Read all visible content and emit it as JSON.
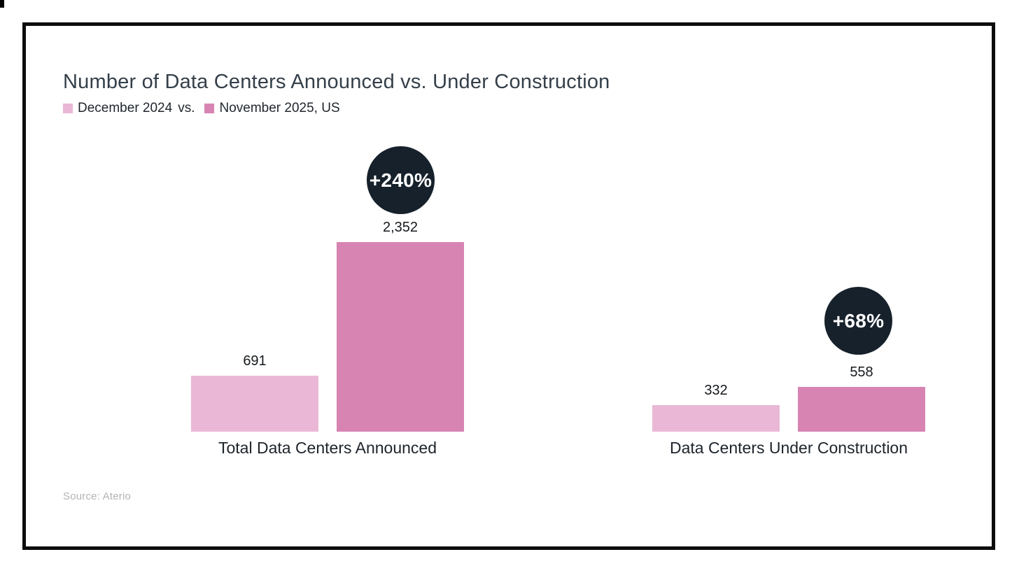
{
  "title": "Number of Data Centers Announced vs. Under Construction",
  "legend": {
    "series1_label": "December 2024",
    "separator": "vs.",
    "series2_label": "November 2025, US"
  },
  "colors": {
    "series1": "#eab8d6",
    "series2": "#d784b3",
    "badge_bg": "#16212b",
    "badge_text": "#ffffff"
  },
  "groups": [
    {
      "label": "Total Data Centers Announced",
      "bars": [
        {
          "series": "December 2024",
          "value_label": "691"
        },
        {
          "series": "November 2025",
          "value_label": "2,352"
        }
      ],
      "badge": "+240%"
    },
    {
      "label": "Data Centers Under Construction",
      "bars": [
        {
          "series": "December 2024",
          "value_label": "332"
        },
        {
          "series": "November 2025",
          "value_label": "558"
        }
      ],
      "badge": "+68%"
    }
  ],
  "source": "Source: Aterio",
  "chart_data": {
    "type": "bar",
    "title": "Number of Data Centers Announced vs. Under Construction",
    "subtitle": "December 2024 vs. November 2025, US",
    "categories": [
      "Total Data Centers Announced",
      "Data Centers Under Construction"
    ],
    "series": [
      {
        "name": "December 2024",
        "values": [
          691,
          332
        ]
      },
      {
        "name": "November 2025",
        "values": [
          2352,
          558
        ]
      }
    ],
    "annotations": [
      {
        "category": "Total Data Centers Announced",
        "label": "+240%"
      },
      {
        "category": "Data Centers Under Construction",
        "label": "+68%"
      }
    ],
    "ylim": [
      0,
      2352
    ],
    "grid": false,
    "axes_shown": false,
    "legend_position": "top-left",
    "source": "Source: Aterio"
  }
}
